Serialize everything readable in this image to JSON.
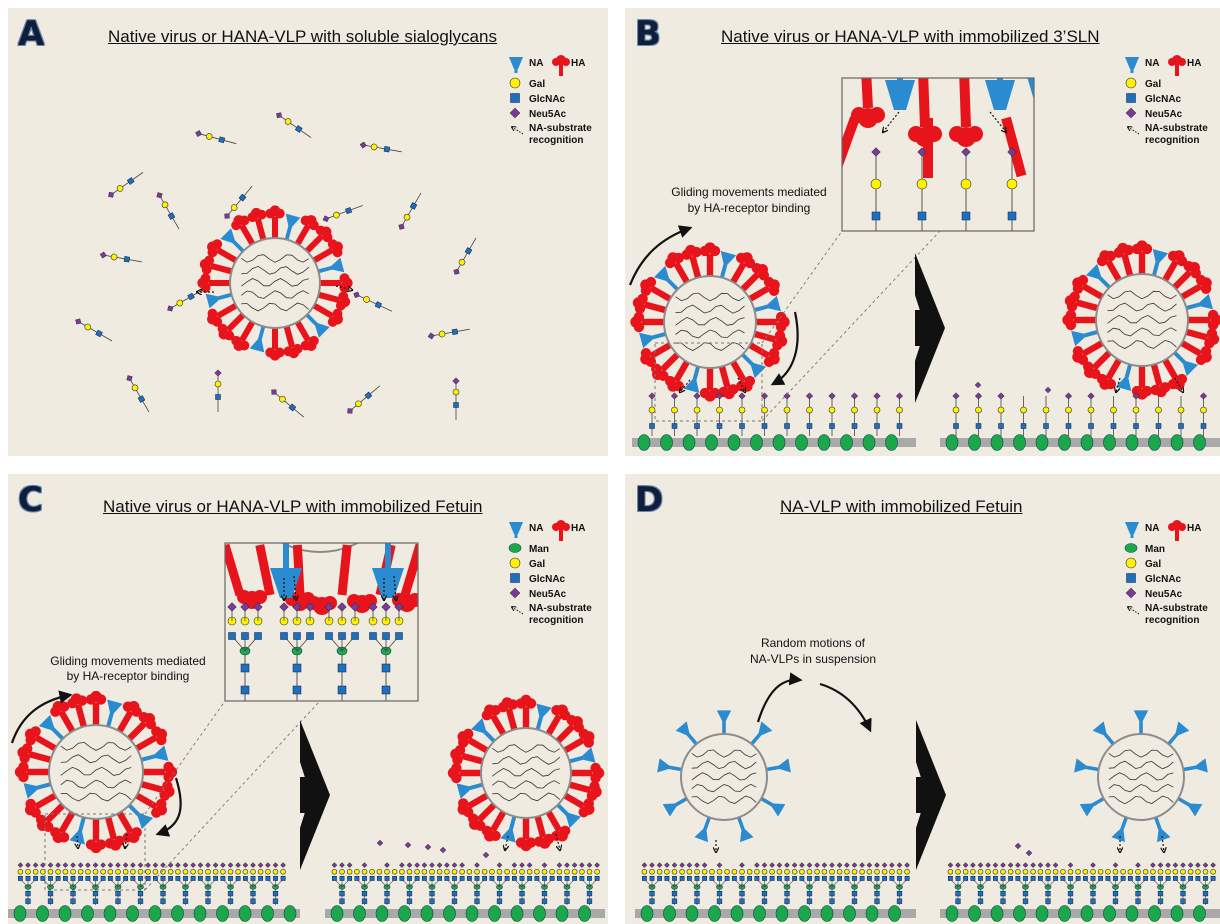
{
  "panels": [
    {
      "letter": "A",
      "title": "Native virus or HANA-VLP with soluble sialoglycans"
    },
    {
      "letter": "B",
      "title": "Native virus or HANA-VLP with immobilized 3’SLN"
    },
    {
      "letter": "C",
      "title": "Native virus or HANA-VLP with immobilized Fetuin"
    },
    {
      "letter": "D",
      "title": "NA-VLP with immobilized Fetuin"
    }
  ],
  "legend": {
    "na": "NA",
    "ha": "HA",
    "man": "Man",
    "gal": "Gal",
    "glcnac": "GlcNAc",
    "neu5ac": "Neu5Ac",
    "recog1": "NA-substrate",
    "recog2": "recognition"
  },
  "annotations": {
    "gliding1": "Gliding movements mediated",
    "gliding2": "by HA-receptor binding",
    "random1": "Random motions of",
    "random2": "NA-VLPs in suspension"
  },
  "colors": {
    "background": "#efebe1",
    "ha": "#e8141b",
    "na": "#2a8bd0",
    "man": "#1aa84a",
    "gal": "#fff200",
    "glcnac": "#1f6fc0",
    "neu5ac": "#7b3a9a",
    "surface": "#a9a9a9"
  }
}
